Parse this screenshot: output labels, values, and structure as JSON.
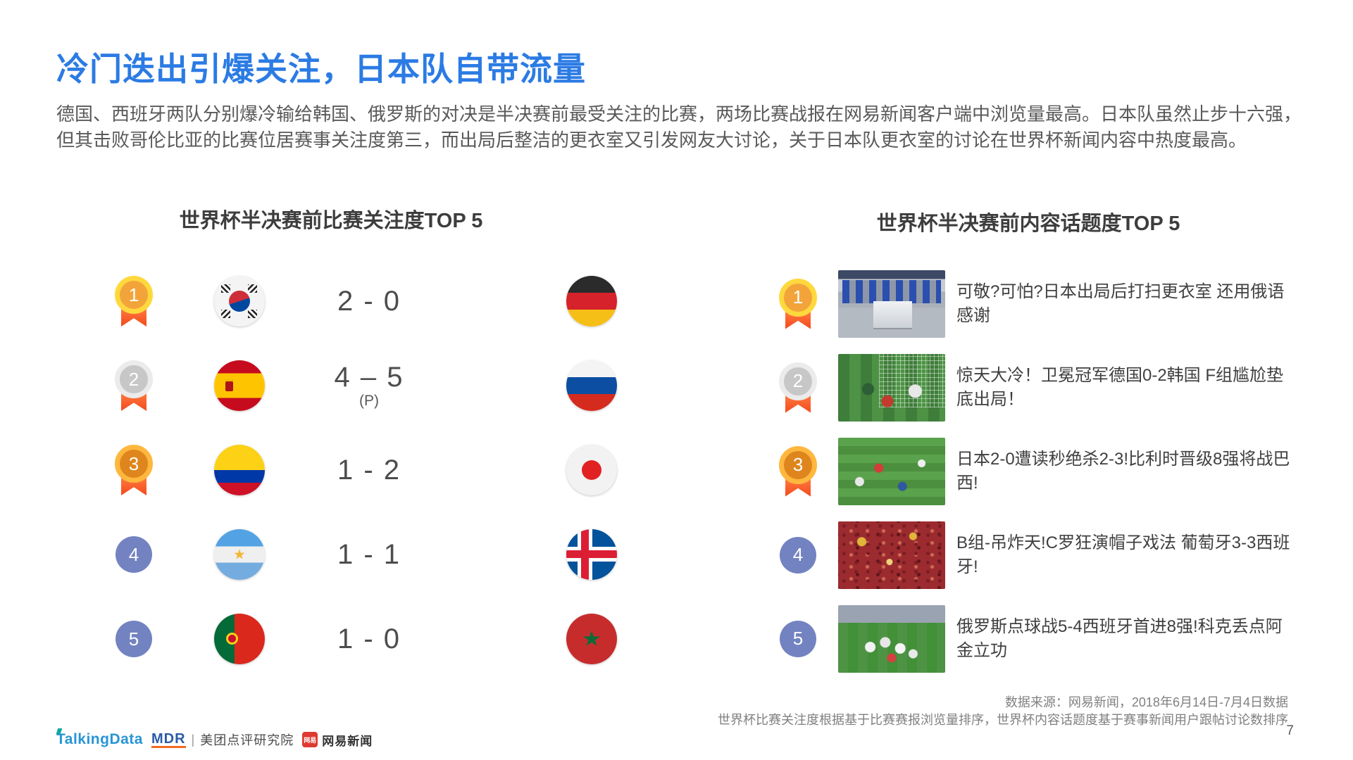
{
  "slide": {
    "title": "冷门迭出引爆关注，日本队自带流量",
    "intro": "德国、西班牙两队分别爆冷输给韩国、俄罗斯的对决是半决赛前最受关注的比赛，两场比赛战报在网易新闻客户端中浏览量最高。日本队虽然止步十六强，但其击败哥伦比亚的比赛位居赛事关注度第三，而出局后整洁的更衣室又引发网友大讨论，关于日本队更衣室的讨论在世界杯新闻内容中热度最高。"
  },
  "left_panel": {
    "title": "世界杯半决赛前比赛关注度TOP 5",
    "rows": [
      {
        "rank": "1",
        "team_left": "south-korea",
        "score": "2 - 0",
        "score_note": "",
        "team_right": "germany"
      },
      {
        "rank": "2",
        "team_left": "spain",
        "score": "4 – 5",
        "score_note": "(P)",
        "team_right": "russia"
      },
      {
        "rank": "3",
        "team_left": "colombia",
        "score": "1 - 2",
        "score_note": "",
        "team_right": "japan"
      },
      {
        "rank": "4",
        "team_left": "argentina",
        "score": "1 - 1",
        "score_note": "",
        "team_right": "iceland"
      },
      {
        "rank": "5",
        "team_left": "portugal",
        "score": "1 - 0",
        "score_note": "",
        "team_right": "morocco"
      }
    ]
  },
  "right_panel": {
    "title": "世界杯半决赛前内容话题度TOP 5",
    "rows": [
      {
        "rank": "1",
        "thumbnail": "japan-locker-room",
        "headline": "可敬?可怕?日本出局后打扫更衣室 还用俄语感谢"
      },
      {
        "rank": "2",
        "thumbnail": "germany-korea-goal",
        "headline": "惊天大冷！卫冕冠军德国0-2韩国 F组尴尬垫底出局！"
      },
      {
        "rank": "3",
        "thumbnail": "japan-belgium-pitch",
        "headline": "日本2-0遭读秒绝杀2-3!比利时晋级8强将战巴西!"
      },
      {
        "rank": "4",
        "thumbnail": "portugal-spain-fans",
        "headline": "B组-吊炸天!C罗狂演帽子戏法 葡萄牙3-3西班牙!"
      },
      {
        "rank": "5",
        "thumbnail": "russia-celebration",
        "headline": "俄罗斯点球战5-4西班牙首进8强!科克丢点阿金立功"
      }
    ]
  },
  "footer": {
    "source_line1": "数据来源：网易新闻，2018年6月14日-7月4日数据",
    "source_line2": "世界杯比赛关注度根据基于比赛赛报浏览量排序，世界杯内容话题度基于赛事新闻用户跟帖讨论数排序",
    "page_number": "7",
    "logos": {
      "talkingdata": "TalkingData",
      "mdr": "MDR",
      "divider": "|",
      "meituan_research": "美团点评研究院",
      "netease_badge": "网易",
      "netease_news": "网易新闻"
    }
  },
  "colors": {
    "title_blue": "#2B7BE4",
    "body_text": "#595959",
    "medal_gold_ring": "#FFD83E",
    "medal_gold_fill": "#F2A43A",
    "medal_silver_ring": "#EBEBEB",
    "medal_silver_fill": "#C7C7C7",
    "medal_bronze_ring": "#FFB73E",
    "medal_bronze_fill": "#DE861D",
    "ribbon_orange": "#F4481F",
    "rank_blue": "#7383C1"
  }
}
